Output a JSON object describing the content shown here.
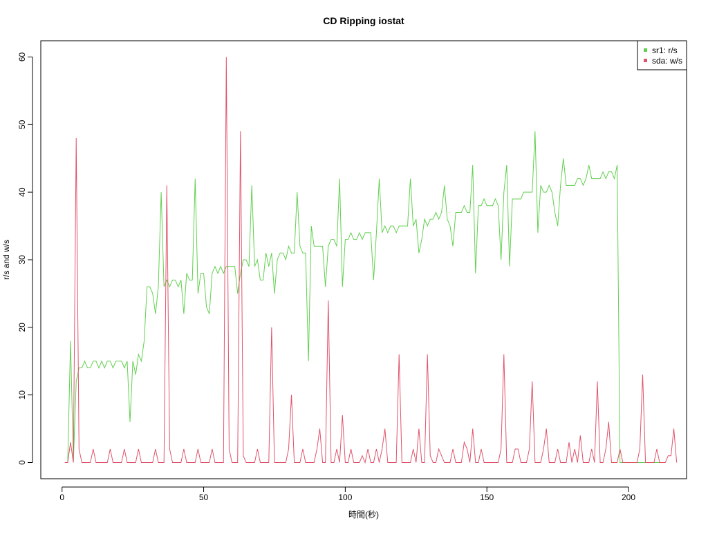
{
  "chart_data": {
    "type": "line",
    "title": "CD Ripping iostat",
    "xlabel": "時間(秒)",
    "ylabel": "r/s and w/s",
    "xlim": [
      -7.5,
      220.5
    ],
    "ylim": [
      -2.4,
      62.4
    ],
    "x_ticks": [
      0,
      50,
      100,
      150,
      200
    ],
    "y_ticks": [
      0,
      10,
      20,
      30,
      40,
      50,
      60
    ],
    "grid": false,
    "legend_position": "top-right",
    "series": [
      {
        "name": "sr1: r/s",
        "color": "#61D04F",
        "values": [
          0,
          0,
          18,
          0,
          12,
          14,
          14,
          15,
          14,
          14,
          15,
          15,
          14,
          15,
          14,
          15,
          15,
          14,
          15,
          15,
          15,
          14,
          15,
          6,
          15,
          13,
          16,
          15,
          18,
          26,
          26,
          25,
          22,
          26,
          40,
          26,
          27,
          26,
          27,
          27,
          26,
          27,
          22,
          28,
          27,
          27,
          42,
          25,
          28,
          28,
          23,
          22,
          28,
          29,
          28,
          29,
          28,
          29,
          29,
          29,
          29,
          25,
          28,
          30,
          30,
          29,
          41,
          29,
          30,
          27,
          27,
          31,
          29,
          31,
          25,
          30,
          31,
          31,
          30,
          32,
          31,
          31,
          40,
          32,
          31,
          31,
          15,
          35,
          32,
          32,
          32,
          32,
          26,
          32,
          33,
          33,
          32,
          42,
          26,
          33,
          33,
          34,
          33,
          33,
          34,
          33,
          34,
          34,
          34,
          27,
          34,
          42,
          34,
          35,
          34,
          35,
          35,
          34,
          35,
          35,
          35,
          35,
          42,
          35,
          36,
          31,
          33,
          36,
          35,
          36,
          36,
          37,
          36,
          37,
          41,
          36,
          35,
          32,
          37,
          37,
          37,
          38,
          37,
          37,
          44,
          28,
          38,
          38,
          39,
          38,
          38,
          38,
          39,
          38,
          30,
          40,
          44,
          29,
          39,
          39,
          39,
          39,
          40,
          40,
          40,
          40,
          49,
          34,
          41,
          40,
          40,
          41,
          40,
          37,
          35,
          41,
          45,
          41,
          41,
          41,
          41,
          42,
          42,
          41,
          42,
          44,
          42,
          42,
          42,
          42,
          43,
          42,
          43,
          43,
          42,
          44,
          0,
          0,
          0,
          0,
          0,
          0,
          0,
          0,
          0,
          0,
          0,
          0,
          0,
          0,
          0
        ]
      },
      {
        "name": "sda: w/s",
        "color": "#DF536B",
        "values": [
          0,
          0,
          3,
          0,
          48,
          2,
          0,
          0,
          0,
          0,
          2,
          0,
          0,
          0,
          0,
          0,
          2,
          0,
          0,
          0,
          0,
          2,
          0,
          0,
          0,
          0,
          2,
          0,
          0,
          0,
          0,
          0,
          2,
          0,
          0,
          0,
          41,
          2,
          0,
          0,
          0,
          0,
          2,
          0,
          0,
          0,
          0,
          2,
          0,
          0,
          0,
          0,
          2,
          0,
          0,
          0,
          0,
          60,
          2,
          0,
          0,
          0,
          49,
          1,
          0,
          0,
          0,
          0,
          2,
          0,
          0,
          0,
          0,
          20,
          0,
          0,
          0,
          0,
          0,
          2,
          10,
          0,
          0,
          0,
          2,
          0,
          0,
          0,
          0,
          2,
          5,
          0,
          0,
          24,
          0,
          0,
          2,
          0,
          7,
          0,
          0,
          2,
          0,
          0,
          0,
          1,
          0,
          2,
          0,
          0,
          2,
          0,
          2,
          5,
          0,
          0,
          0,
          0,
          16,
          0,
          0,
          0,
          0,
          2,
          0,
          5,
          0,
          0,
          16,
          1,
          0,
          0,
          2,
          1,
          0,
          0,
          0,
          2,
          0,
          0,
          0,
          3,
          2,
          0,
          5,
          0,
          0,
          2,
          0,
          0,
          0,
          0,
          0,
          0,
          2,
          16,
          0,
          0,
          0,
          2,
          2,
          0,
          0,
          0,
          2,
          12,
          0,
          0,
          0,
          2,
          5,
          0,
          0,
          0,
          2,
          0,
          0,
          0,
          3,
          0,
          2,
          0,
          4,
          0,
          0,
          0,
          2,
          0,
          12,
          0,
          0,
          2,
          6,
          0,
          0,
          0,
          2,
          0,
          0,
          0,
          0,
          0,
          0,
          2,
          13,
          0,
          0,
          0,
          0,
          2,
          0,
          0,
          0,
          1,
          1,
          5,
          0
        ]
      }
    ]
  }
}
